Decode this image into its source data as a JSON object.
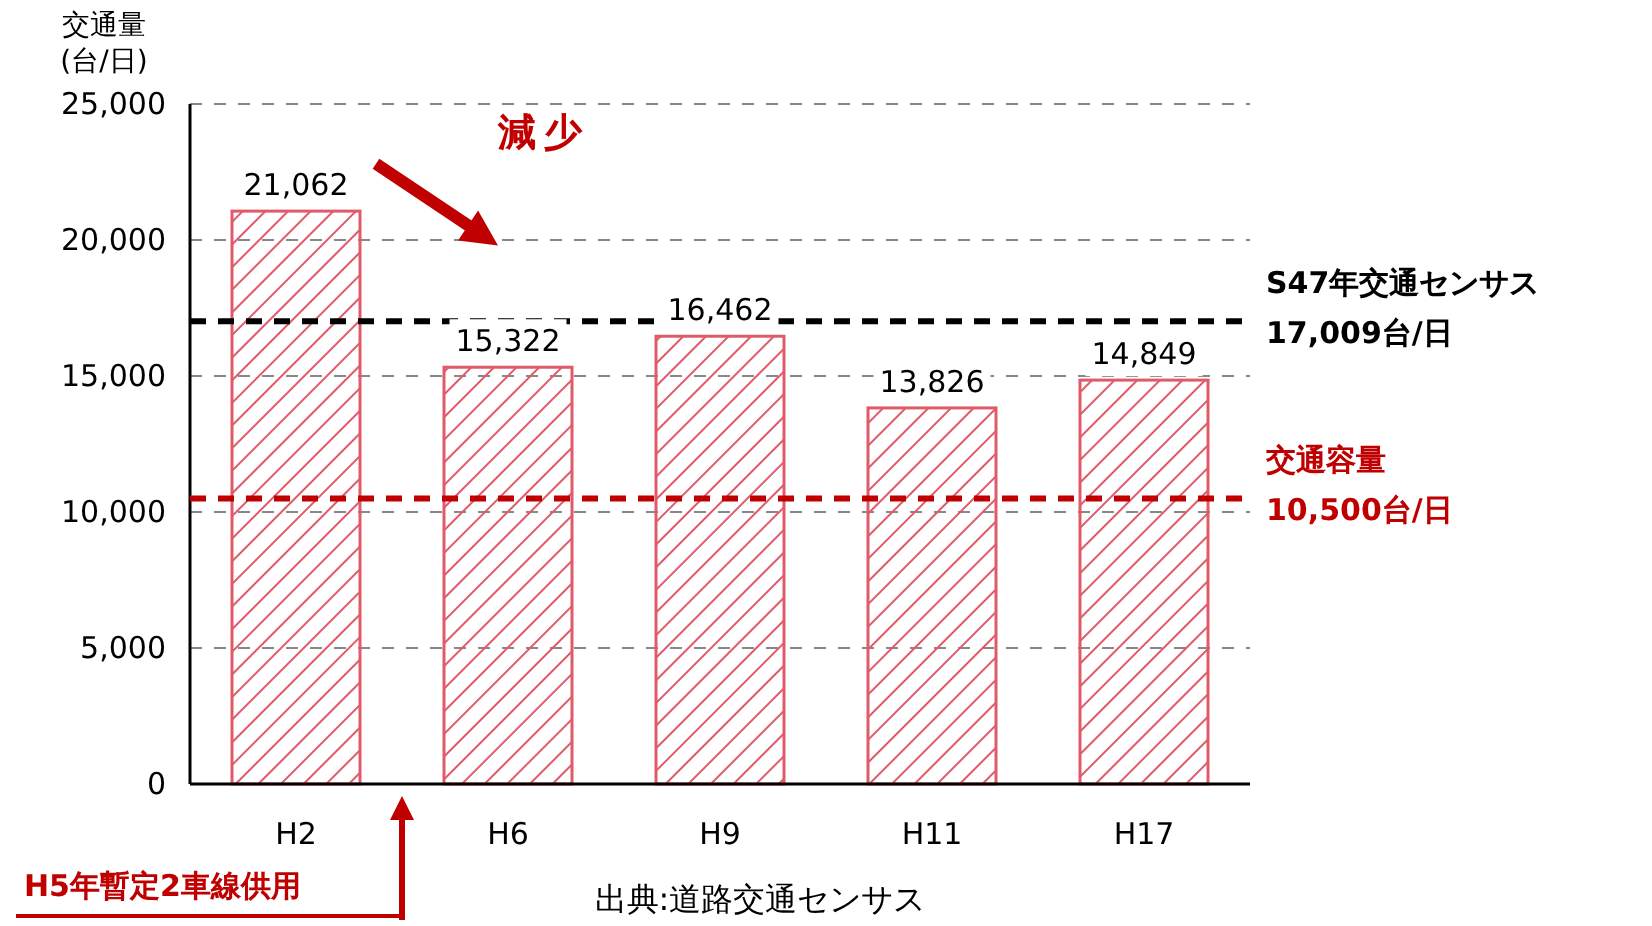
{
  "chart_data": {
    "type": "bar",
    "ylabel": "交通量\n(台/日)",
    "categories": [
      "H2",
      "H6",
      "H9",
      "H11",
      "H17"
    ],
    "series": [
      {
        "color": "#e05a6a",
        "values": [
          21062,
          15322,
          16462,
          13826,
          14849
        ]
      }
    ],
    "value_labels": [
      "21,062",
      "15,322",
      "16,462",
      "13,826",
      "14,849"
    ],
    "ylim": [
      0,
      25000
    ],
    "yticks": [
      {
        "value": 0,
        "label": "0"
      },
      {
        "value": 5000,
        "label": "5,000"
      },
      {
        "value": 10000,
        "label": "10,000"
      },
      {
        "value": 15000,
        "label": "15,000"
      },
      {
        "value": 20000,
        "label": "20,000"
      },
      {
        "value": 25000,
        "label": "25,000"
      }
    ],
    "grid": "y",
    "ref_lines": [
      {
        "axis": "y",
        "value": 17009,
        "label": "S47年交通センサス\n17,009台/日",
        "color": "#000000",
        "line_style": "dashed"
      },
      {
        "axis": "y",
        "value": 10500,
        "label": "交通容量\n10,500台/日",
        "color": "#c00000",
        "line_style": "dashed"
      }
    ],
    "annotations": [
      "減少",
      "H5年暫定2車線供用",
      "出典:道路交通センサス"
    ]
  }
}
